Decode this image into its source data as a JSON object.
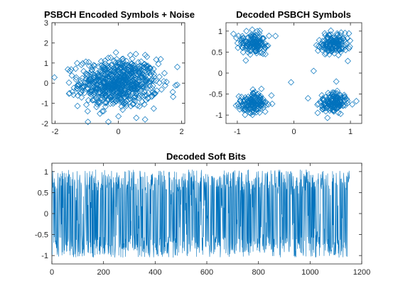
{
  "chart_data": [
    {
      "id": "encoded",
      "type": "scatter",
      "title": "PSBCH Encoded Symbols + Noise",
      "xlim": [
        -2.1,
        2.1
      ],
      "ylim": [
        -2,
        3
      ],
      "xticks": [
        -2,
        0,
        2
      ],
      "yticks": [
        -2,
        -1,
        0,
        1,
        2,
        3
      ],
      "marker": "diamond",
      "color": "#0072BD",
      "points_description": "~700 QPSK-like symbols heavily noised, clustered around the origin",
      "spread": {
        "center": [
          0.0,
          0.0
        ],
        "sx": 0.62,
        "sy": 0.6,
        "count": 700
      }
    },
    {
      "id": "decoded",
      "type": "scatter",
      "title": "Decoded PSBCH Symbols",
      "xlim": [
        -1.2,
        1.2
      ],
      "ylim": [
        -1.2,
        1.2
      ],
      "xticks": [
        -1,
        0,
        1
      ],
      "yticks": [
        -1,
        -0.5,
        0,
        0.5,
        1
      ],
      "marker": "diamond",
      "color": "#0072BD",
      "clusters": [
        {
          "center": [
            -0.71,
            0.71
          ]
        },
        {
          "center": [
            0.71,
            0.71
          ]
        },
        {
          "center": [
            -0.71,
            -0.71
          ]
        },
        {
          "center": [
            0.71,
            -0.71
          ]
        }
      ],
      "cluster_spread": 0.13,
      "points_per_cluster": 140
    },
    {
      "id": "softbits",
      "type": "line",
      "title": "Decoded Soft Bits",
      "xlim": [
        0,
        1200
      ],
      "ylim": [
        -1.2,
        1.2
      ],
      "xticks": [
        0,
        200,
        400,
        600,
        800,
        1000,
        1200
      ],
      "yticks": [
        -1,
        -0.5,
        0,
        0.5,
        1
      ],
      "n_samples": 1152,
      "color": "#0072BD",
      "value_range": [
        -1.15,
        1.2
      ]
    }
  ]
}
